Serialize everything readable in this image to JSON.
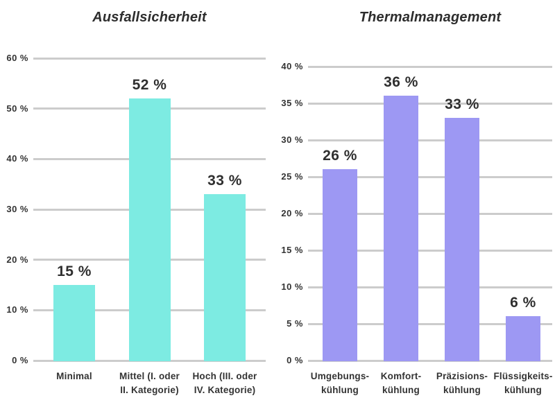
{
  "page": {
    "background": "#ffffff",
    "text_color": "#333333",
    "value_label_color": "#2f2f2f",
    "title_color": "#2d2d2d",
    "gridline_color": "#cccccc"
  },
  "chart_data": [
    {
      "type": "bar",
      "title": "Ausfallsicherheit",
      "categories": [
        "Minimal",
        "Mittel (I. oder II. Kategorie)",
        "Hoch (III. oder IV. Kategorie)"
      ],
      "category_label_lines": [
        [
          "Minimal"
        ],
        [
          "Mittel (I. oder",
          "II. Kategorie)"
        ],
        [
          "Hoch (III. oder",
          "IV. Kategorie)"
        ]
      ],
      "values": [
        15,
        52,
        33
      ],
      "value_labels": [
        "15 %",
        "52 %",
        "33 %"
      ],
      "unit": "%",
      "xlabel": "",
      "ylabel": "",
      "ylim": [
        0,
        60
      ],
      "ytick_step": 10,
      "yticks": [
        {
          "value": 0,
          "label": "0 %"
        },
        {
          "value": 10,
          "label": "10 %"
        },
        {
          "value": 20,
          "label": "20 %"
        },
        {
          "value": 30,
          "label": "30 %"
        },
        {
          "value": 40,
          "label": "40 %"
        },
        {
          "value": 50,
          "label": "50 %"
        },
        {
          "value": 60,
          "label": "60 %"
        }
      ],
      "bar_color": "#7debe2",
      "grid": true,
      "legend": "none"
    },
    {
      "type": "bar",
      "title": "Thermalmanagement",
      "categories": [
        "Umgebungs-kühlung",
        "Komfort-kühlung",
        "Präzisions-kühlung",
        "Flüssigkeits-kühlung"
      ],
      "category_label_lines": [
        [
          "Umgebungs-",
          "kühlung"
        ],
        [
          "Komfort-",
          "kühlung"
        ],
        [
          "Präzisions-",
          "kühlung"
        ],
        [
          "Flüssigkeits-",
          "kühlung"
        ]
      ],
      "values": [
        26,
        36,
        33,
        6
      ],
      "value_labels": [
        "26 %",
        "36 %",
        "33 %",
        "6 %"
      ],
      "unit": "%",
      "xlabel": "",
      "ylabel": "",
      "ylim": [
        0,
        40
      ],
      "ytick_step": 5,
      "yticks": [
        {
          "value": 0,
          "label": "0 %"
        },
        {
          "value": 5,
          "label": "5 %"
        },
        {
          "value": 10,
          "label": "10 %"
        },
        {
          "value": 15,
          "label": "15 %"
        },
        {
          "value": 20,
          "label": "20 %"
        },
        {
          "value": 25,
          "label": "25 %"
        },
        {
          "value": 30,
          "label": "30 %"
        },
        {
          "value": 35,
          "label": "35 %"
        },
        {
          "value": 40,
          "label": "40 %"
        }
      ],
      "bar_color": "#9d98f3",
      "grid": true,
      "legend": "none"
    }
  ]
}
